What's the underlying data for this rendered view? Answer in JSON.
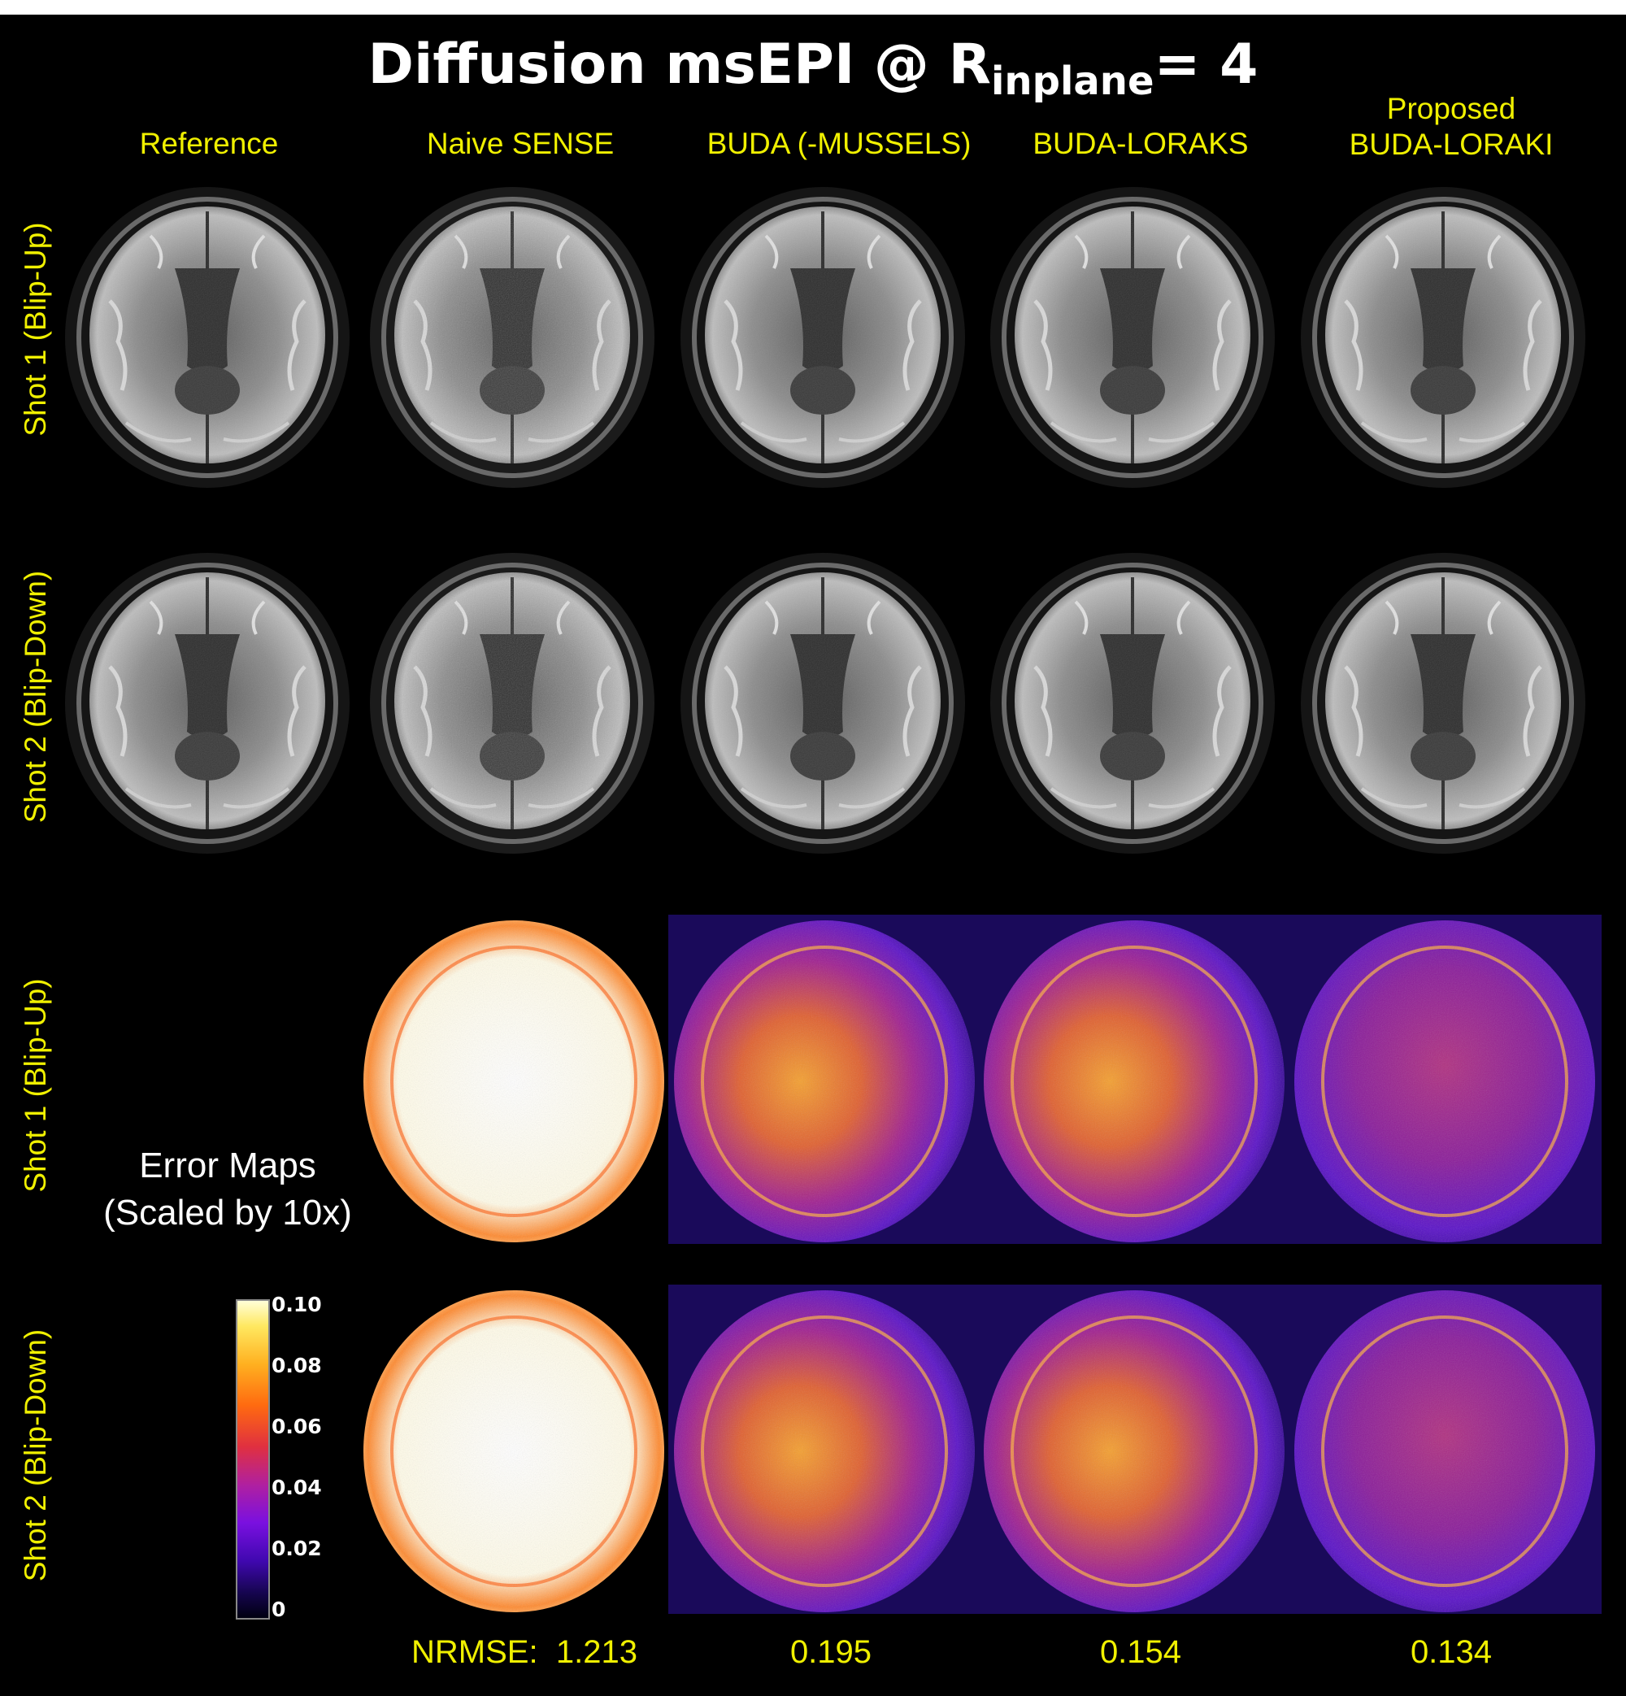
{
  "title": {
    "main": "Diffusion msEPI @ R",
    "sub": "inplane",
    "tail": "= 4"
  },
  "columns": [
    {
      "label": "Reference"
    },
    {
      "label": "Naive SENSE"
    },
    {
      "label": "BUDA (-MUSSELS)"
    },
    {
      "label": "BUDA-LORAKS"
    },
    {
      "label_line1": "Proposed",
      "label_line2": "BUDA-LORAKI"
    }
  ],
  "rows": {
    "shot1": "Shot 1 (Blip-Up)",
    "shot2": "Shot 2 (Blip-Down)"
  },
  "error_maps": {
    "line1": "Error Maps",
    "line2": "(Scaled by 10x)"
  },
  "colorbar": {
    "ticks": [
      "0.10",
      "0.08",
      "0.06",
      "0.04",
      "0.02",
      "0"
    ]
  },
  "nrmse": {
    "label": "NRMSE:",
    "values": [
      "1.213",
      "0.195",
      "0.154",
      "0.134"
    ]
  },
  "colors": {
    "label": "#f0f000",
    "background": "#000000",
    "text": "#ffffff"
  }
}
